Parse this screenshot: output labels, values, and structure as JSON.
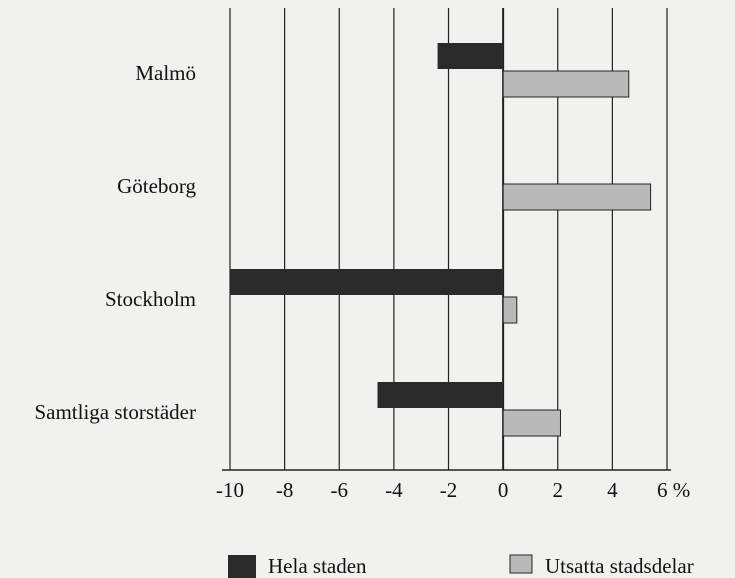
{
  "chart_data": {
    "type": "bar",
    "orientation": "horizontal",
    "categories": [
      "Malmö",
      "Göteborg",
      "Stockholm",
      "Samtliga storstäder"
    ],
    "series": [
      {
        "name": "Hela staden",
        "color": "#2a2a2a",
        "values": [
          -2.4,
          0,
          -10,
          -4.6
        ]
      },
      {
        "name": "Utsatta stadsdelar",
        "color": "#b9b9b9",
        "values": [
          4.6,
          5.4,
          0.5,
          2.1
        ]
      }
    ],
    "xlim": [
      -10,
      6
    ],
    "xticks": [
      -10,
      -8,
      -6,
      -4,
      -2,
      0,
      2,
      4,
      {
        "value": 6,
        "label": "6 %"
      }
    ],
    "grid": true,
    "legend": "bottom"
  }
}
